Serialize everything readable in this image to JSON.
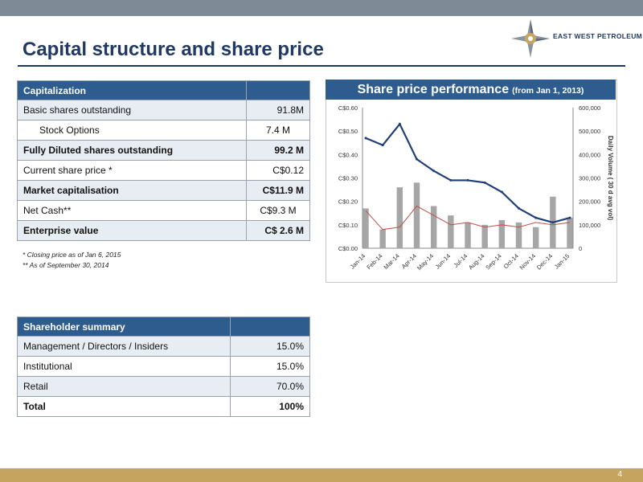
{
  "slide": {
    "title": "Capital structure and share price",
    "page_number": "4",
    "logo_text": "EAST WEST PETROLEUM"
  },
  "capitalization": {
    "header": "Capitalization",
    "rows": [
      {
        "label": "Basic shares outstanding",
        "value": "91.8M"
      },
      {
        "label": "Stock Options",
        "value": "7.4 M"
      },
      {
        "label": "Fully Diluted shares outstanding",
        "value": "99.2 M"
      },
      {
        "label": "Current share price *",
        "value": "C$0.12"
      },
      {
        "label": "Market capitalisation",
        "value": "C$11.9 M"
      },
      {
        "label": "Net Cash**",
        "value": "C$9.3 M"
      },
      {
        "label": "Enterprise value",
        "value": "C$ 2.6 M"
      }
    ]
  },
  "footnotes": {
    "note1": "* Closing price as of Jan 6, 2015",
    "note2": "** As of September 30, 2014"
  },
  "shareholders": {
    "header": "Shareholder summary",
    "rows": [
      {
        "label": "Management / Directors / Insiders",
        "value": "15.0%"
      },
      {
        "label": "Institutional",
        "value": "15.0%"
      },
      {
        "label": "Retail",
        "value": "70.0%"
      },
      {
        "label": "Total",
        "value": "100%"
      }
    ]
  },
  "chart_data": {
    "type": "line",
    "title": "Share price performance",
    "subtitle": "(from Jan 1, 2013)",
    "xlabel": "",
    "ylabel": "",
    "y2label": "Daily Volume (   30 d avg vol)",
    "categories": [
      "Jan-14",
      "Feb-14",
      "Mar-14",
      "Apr-14",
      "May-14",
      "Jun-14",
      "Jul-14",
      "Aug-14",
      "Sep-14",
      "Oct-14",
      "Nov-14",
      "Dec-14",
      "Jan-15"
    ],
    "ylim": [
      0,
      0.6
    ],
    "y_ticks": [
      "C$0.00",
      "C$0.10",
      "C$0.20",
      "C$0.30",
      "C$0.40",
      "C$0.50",
      "C$0.60"
    ],
    "y2lim": [
      0,
      600000
    ],
    "y2_ticks": [
      "0",
      "100,000",
      "200,000",
      "300,000",
      "400,000",
      "500,000",
      "600,000"
    ],
    "grid": false,
    "colors": {
      "price": "#1f3e78",
      "avg_volume": "#c0504d",
      "volume": "#a6a6a6"
    },
    "series": [
      {
        "axis": "left",
        "values": [
          0.47,
          0.44,
          0.53,
          0.38,
          0.33,
          0.29,
          0.29,
          0.28,
          0.24,
          0.17,
          0.13,
          0.11,
          0.13
        ]
      },
      {
        "axis": "right",
        "values": [
          160000,
          80000,
          90000,
          180000,
          140000,
          100000,
          110000,
          90000,
          100000,
          90000,
          110000,
          100000,
          110000
        ]
      },
      {
        "axis": "right",
        "values": [
          170000,
          80000,
          260000,
          280000,
          180000,
          140000,
          110000,
          100000,
          120000,
          110000,
          90000,
          220000,
          130000
        ]
      }
    ]
  }
}
